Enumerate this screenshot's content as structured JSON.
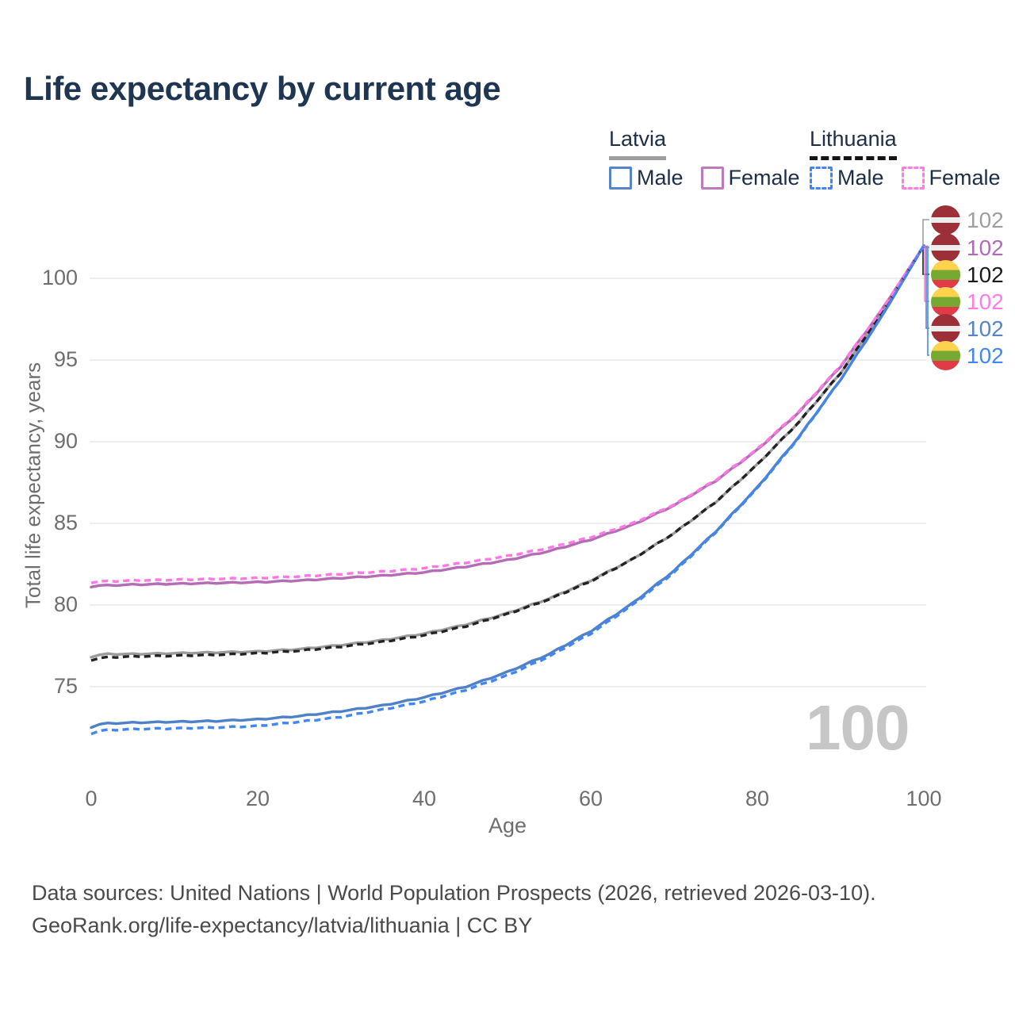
{
  "title": "Life expectancy by current age",
  "legend": {
    "latvia": {
      "title": "Latvia",
      "male": "Male",
      "female": "Female"
    },
    "lithuania": {
      "title": "Lithuania",
      "male": "Male",
      "female": "Female"
    }
  },
  "watermark_age": "100",
  "footer": {
    "line1": "Data sources: United Nations | World Population Prospects (2026, retrieved 2026-03-10).",
    "line2": "GeoRank.org/life-expectancy/latvia/lithuania | CC BY"
  },
  "colors": {
    "title_text": "#1f3652",
    "legend_text": "#1d2e49",
    "axis_text": "#6e6e6e",
    "gridline": "#e9e9e9",
    "watermark": "#c6c6c6",
    "latvia_flag_red": "#9d2f39",
    "lithuania_flag_yellow": "#ffd24d",
    "lithuania_flag_green": "#76a832",
    "lithuania_flag_red": "#e13b47"
  },
  "chart_data": {
    "type": "line",
    "title": "Life expectancy by current age",
    "xlabel": "Age",
    "ylabel": "Total life expectancy, years",
    "x_ticks": [
      0,
      20,
      40,
      60,
      80,
      100
    ],
    "y_ticks": [
      75,
      80,
      85,
      90,
      95,
      100
    ],
    "xlim": [
      0,
      100
    ],
    "ylim": [
      71.5,
      102.5
    ],
    "grid": "horizontal",
    "legend_position": "top-right",
    "x": [
      0,
      1,
      2,
      5,
      10,
      15,
      20,
      25,
      30,
      35,
      40,
      45,
      50,
      55,
      60,
      65,
      70,
      75,
      80,
      85,
      90,
      95,
      100
    ],
    "series": [
      {
        "name": "Latvia",
        "country": "latvia",
        "sex": "both",
        "line_style": "solid",
        "color": "#9c9c9c",
        "label_color": "#9e9e9e",
        "end_label": "102",
        "values": [
          76.8,
          76.95,
          77.0,
          77.0,
          77.05,
          77.1,
          77.15,
          77.3,
          77.55,
          77.85,
          78.25,
          78.8,
          79.5,
          80.4,
          81.5,
          82.8,
          84.4,
          86.3,
          88.6,
          91.2,
          94.2,
          97.9,
          102
        ]
      },
      {
        "name": "Latvia Female",
        "country": "latvia",
        "sex": "female",
        "line_style": "solid",
        "color": "#b46cb4",
        "label_color": "#b06ab8",
        "end_label": "102",
        "values": [
          81.1,
          81.2,
          81.2,
          81.25,
          81.3,
          81.35,
          81.4,
          81.5,
          81.65,
          81.8,
          82.0,
          82.35,
          82.75,
          83.3,
          84.0,
          84.9,
          86.1,
          87.6,
          89.5,
          91.8,
          94.6,
          98.1,
          102
        ]
      },
      {
        "name": "Lithuania",
        "country": "lithuania",
        "sex": "both",
        "line_style": "dashed",
        "color": "#222222",
        "label_color": "#1b1b1b",
        "end_label": "102",
        "values": [
          76.6,
          76.75,
          76.8,
          76.85,
          76.9,
          76.95,
          77.05,
          77.2,
          77.45,
          77.75,
          78.15,
          78.7,
          79.45,
          80.35,
          81.45,
          82.8,
          84.4,
          86.3,
          88.6,
          91.2,
          94.2,
          97.9,
          102
        ]
      },
      {
        "name": "Lithuania Female",
        "country": "lithuania",
        "sex": "female",
        "line_style": "dashed",
        "color": "#ff78e6",
        "label_color": "#ff7ce8",
        "end_label": "102",
        "values": [
          81.35,
          81.45,
          81.45,
          81.5,
          81.55,
          81.6,
          81.65,
          81.75,
          81.9,
          82.05,
          82.25,
          82.6,
          83.0,
          83.5,
          84.15,
          85.0,
          86.15,
          87.65,
          89.55,
          91.85,
          94.65,
          98.1,
          102
        ]
      },
      {
        "name": "Latvia Male",
        "country": "latvia",
        "sex": "male",
        "line_style": "solid",
        "color": "#4f81c8",
        "label_color": "#5584c8",
        "end_label": "102",
        "values": [
          72.5,
          72.7,
          72.75,
          72.8,
          72.85,
          72.9,
          73.0,
          73.2,
          73.5,
          73.85,
          74.35,
          75.0,
          75.9,
          77.0,
          78.4,
          80.1,
          82.1,
          84.5,
          87.2,
          90.3,
          93.8,
          97.7,
          102
        ]
      },
      {
        "name": "Lithuania Male",
        "country": "lithuania",
        "sex": "male",
        "line_style": "dashed",
        "color": "#4286f5",
        "label_color": "#4286f5",
        "end_label": "102",
        "values": [
          72.1,
          72.3,
          72.35,
          72.4,
          72.45,
          72.5,
          72.6,
          72.85,
          73.15,
          73.6,
          74.1,
          74.8,
          75.7,
          76.85,
          78.25,
          80.0,
          82.0,
          84.45,
          87.15,
          90.25,
          93.8,
          97.7,
          102
        ]
      }
    ]
  }
}
